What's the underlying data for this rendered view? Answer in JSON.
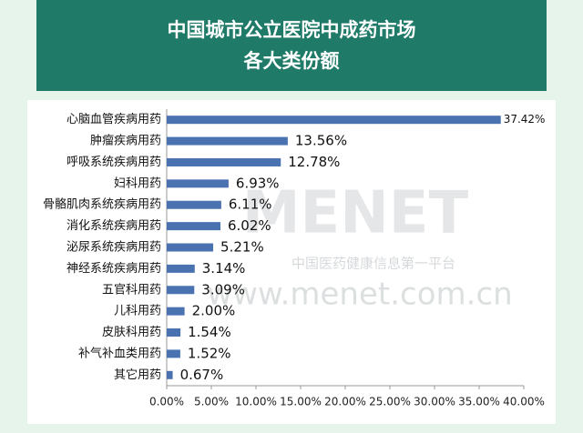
{
  "chart_data": {
    "type": "hbar",
    "title": [
      "中国城市公立医院中成药市场",
      "各大类份额"
    ],
    "categories": [
      "心脑血管疾病用药",
      "肿瘤疾病用药",
      "呼吸系统疾病用药",
      "妇科用药",
      "骨骼肌肉系统疾病用药",
      "消化系统疾病用药",
      "泌尿系统疾病用药",
      "神经系统疾病用药",
      "五官科用药",
      "儿科用药",
      "皮肤科用药",
      "补气补血类用药",
      "其它用药"
    ],
    "values": [
      37.42,
      13.56,
      12.78,
      6.93,
      6.11,
      6.02,
      5.21,
      3.14,
      3.09,
      2.0,
      1.54,
      1.52,
      0.67
    ],
    "value_labels": [
      "37.42%",
      "13.56%",
      "12.78%",
      "6.93%",
      "6.11%",
      "6.02%",
      "5.21%",
      "3.14%",
      "3.09%",
      "2.00%",
      "1.54%",
      "1.52%",
      "0.67%"
    ],
    "color": "#4a72b0",
    "xlim": [
      0,
      40
    ],
    "xticks": [
      {
        "value": 0,
        "label": "0.00%"
      },
      {
        "value": 5,
        "label": "5.00%"
      },
      {
        "value": 10,
        "label": "10.00%"
      },
      {
        "value": 15,
        "label": "15.00%"
      },
      {
        "value": 20,
        "label": "20.00%"
      },
      {
        "value": 25,
        "label": "25.00%"
      },
      {
        "value": 30,
        "label": "30.00%"
      },
      {
        "value": 35,
        "label": "35.00%"
      },
      {
        "value": 40,
        "label": "40.00%"
      }
    ],
    "watermark": [
      "MENET",
      "中国医药健康信息第一平台",
      "www.menet.com.cn"
    ]
  }
}
